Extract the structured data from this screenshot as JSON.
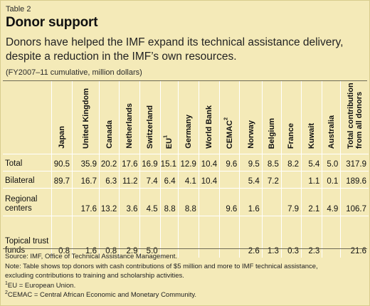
{
  "table_label": "Table 2",
  "title": "Donor support",
  "subtitle": "Donors have helped the IMF expand its technical assistance delivery, despite a reduction in the IMF’s own resources.",
  "units": "(FY2007–11 cumulative, million dollars)",
  "columns": [
    {
      "label": "Japan",
      "sup": ""
    },
    {
      "label": "United Kingdom",
      "sup": ""
    },
    {
      "label": "Canada",
      "sup": ""
    },
    {
      "label": "Netherlands",
      "sup": ""
    },
    {
      "label": "Switzerland",
      "sup": ""
    },
    {
      "label": "EU",
      "sup": "1"
    },
    {
      "label": "Germany",
      "sup": ""
    },
    {
      "label": "World Bank",
      "sup": ""
    },
    {
      "label": "CEMAC",
      "sup": "2"
    },
    {
      "label": "Norway",
      "sup": ""
    },
    {
      "label": "Belgium",
      "sup": ""
    },
    {
      "label": "France",
      "sup": ""
    },
    {
      "label": "Kuwait",
      "sup": ""
    },
    {
      "label": "Australia",
      "sup": ""
    },
    {
      "label": "Total contribution from all donors",
      "sup": ""
    }
  ],
  "rows": [
    {
      "label": "Total",
      "values": [
        "90.5",
        "35.9",
        "20.2",
        "17.6",
        "16.9",
        "15.1",
        "12.9",
        "10.4",
        "9.6",
        "9.5",
        "8.5",
        "8.2",
        "5.4",
        "5.0",
        "317.9"
      ]
    },
    {
      "label": "Bilateral",
      "values": [
        "89.7",
        "16.7",
        "6.3",
        "11.2",
        "7.4",
        "6.4",
        "4.1",
        "10.4",
        "",
        "5.4",
        "7.2",
        "",
        "1.1",
        "0.1",
        "189.6"
      ]
    },
    {
      "label": "Regional centers",
      "values": [
        "",
        "17.6",
        "13.2",
        "3.6",
        "4.5",
        "8.8",
        "8.8",
        "",
        "9.6",
        "1.6",
        "",
        "7.9",
        "2.1",
        "4.9",
        "106.7"
      ]
    },
    {
      "label": "Topical trust funds",
      "values": [
        "0.8",
        "1.6",
        "0.8",
        "2.9",
        "5.0",
        "",
        "",
        "",
        "",
        "2.6",
        "1.3",
        "0.3",
        "2.3",
        "",
        "21.6"
      ]
    }
  ],
  "notes": {
    "source": "Source: IMF, Office of Technical Assistance Management.",
    "note_line1": "Note: Table shows top donors with cash contributions of $5 million and more to IMF technical assistance,",
    "note_line2": "excluding contributions to training and scholarship activities.",
    "fn1_mark": "1",
    "fn1_text": "EU = European Union.",
    "fn2_mark": "2",
    "fn2_text": "CEMAC = Central African Economic and Monetary Community."
  }
}
